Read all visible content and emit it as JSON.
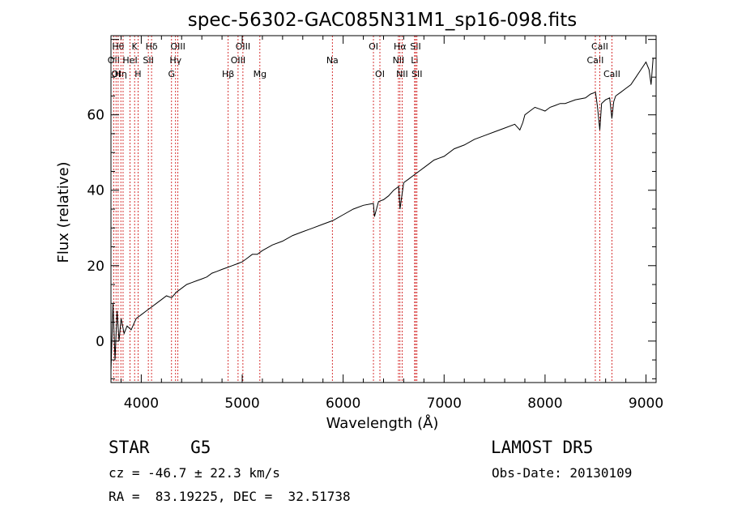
{
  "chart_data": {
    "type": "line",
    "title": "spec-56302-GAC085N31M1_sp16-098.fits",
    "xlabel": "Wavelength (Å)",
    "ylabel": "Flux (relative)",
    "xlim": [
      3700,
      9100
    ],
    "ylim": [
      -11,
      81
    ],
    "xticks": [
      4000,
      5000,
      6000,
      7000,
      8000,
      9000
    ],
    "yticks": [
      0,
      20,
      40,
      60
    ],
    "grid": false,
    "line_color": "#000000",
    "marker_color": "#cc0000",
    "series": [
      {
        "x": [
          3700,
          3720,
          3740,
          3760,
          3780,
          3800,
          3830,
          3860,
          3900,
          3950,
          4000,
          4050,
          4100,
          4150,
          4200,
          4250,
          4300,
          4350,
          4400,
          4450,
          4500,
          4550,
          4600,
          4650,
          4700,
          4750,
          4800,
          4850,
          4900,
          4950,
          5000,
          5050,
          5100,
          5150,
          5200,
          5300,
          5400,
          5500,
          5600,
          5700,
          5800,
          5900,
          6000,
          6100,
          6200,
          6300,
          6310,
          6350,
          6400,
          6450,
          6500,
          6550,
          6563,
          6600,
          6650,
          6700,
          6750,
          6800,
          6850,
          6900,
          6950,
          7000,
          7100,
          7200,
          7300,
          7400,
          7500,
          7600,
          7700,
          7750,
          7780,
          7800,
          7850,
          7900,
          7950,
          8000,
          8050,
          8100,
          8150,
          8200,
          8300,
          8400,
          8450,
          8500,
          8520,
          8542,
          8560,
          8600,
          8640,
          8662,
          8680,
          8700,
          8750,
          8800,
          8850,
          8900,
          8950,
          9000,
          9030,
          9050,
          9070,
          9100
        ],
        "y": [
          -8,
          10,
          -5,
          8,
          0,
          6,
          2,
          4,
          3,
          6,
          7,
          8,
          9,
          10,
          11,
          12,
          11.5,
          13,
          14,
          15,
          15.5,
          16,
          16.5,
          17,
          18,
          18.5,
          19,
          19.5,
          20,
          20.5,
          21,
          22,
          23,
          23,
          24,
          25.5,
          26.5,
          28,
          29,
          30,
          31,
          32,
          33.5,
          35,
          36,
          36.5,
          33,
          37,
          37.5,
          38.5,
          40,
          41,
          35,
          42,
          43,
          44,
          45,
          46,
          47,
          48,
          48.5,
          49,
          51,
          52,
          53.5,
          54.5,
          55.5,
          56.5,
          57.5,
          56,
          58,
          60,
          61,
          62,
          61.5,
          61,
          62,
          62.5,
          63,
          63,
          64,
          64.5,
          65.5,
          66,
          62,
          56,
          63,
          64,
          64.5,
          59,
          63.5,
          65,
          66,
          67,
          68,
          70,
          72,
          74,
          72,
          68,
          75,
          75
        ]
      }
    ],
    "line_markers": [
      {
        "w": 3727,
        "label": "OII",
        "row": 1
      },
      {
        "w": 3750,
        "label": "OI",
        "row": 2
      },
      {
        "w": 3771,
        "label": "Hθ",
        "row": 0
      },
      {
        "w": 3798,
        "label": "Hη",
        "row": 2
      },
      {
        "w": 3820,
        "label": "",
        "row": 0
      },
      {
        "w": 3889,
        "label": "HeI",
        "row": 1
      },
      {
        "w": 3934,
        "label": "K",
        "row": 0
      },
      {
        "w": 3968,
        "label": "H",
        "row": 2
      },
      {
        "w": 4070,
        "label": "SII",
        "row": 1
      },
      {
        "w": 4102,
        "label": "Hδ",
        "row": 0
      },
      {
        "w": 4300,
        "label": "G",
        "row": 2
      },
      {
        "w": 4340,
        "label": "Hγ",
        "row": 1
      },
      {
        "w": 4363,
        "label": "OIII",
        "row": 0
      },
      {
        "w": 4861,
        "label": "Hβ",
        "row": 2
      },
      {
        "w": 4959,
        "label": "OIII",
        "row": 1
      },
      {
        "w": 5007,
        "label": "OIII",
        "row": 0
      },
      {
        "w": 5175,
        "label": "Mg",
        "row": 2
      },
      {
        "w": 5893,
        "label": "Na",
        "row": 1
      },
      {
        "w": 6300,
        "label": "OI",
        "row": 0
      },
      {
        "w": 6364,
        "label": "OI",
        "row": 2
      },
      {
        "w": 6548,
        "label": "NII",
        "row": 1
      },
      {
        "w": 6563,
        "label": "Hα",
        "row": 0
      },
      {
        "w": 6584,
        "label": "NII",
        "row": 2
      },
      {
        "w": 6708,
        "label": "Li",
        "row": 1
      },
      {
        "w": 6717,
        "label": "SII",
        "row": 0
      },
      {
        "w": 6731,
        "label": "SII",
        "row": 2
      },
      {
        "w": 8498,
        "label": "CaII",
        "row": 1
      },
      {
        "w": 8542,
        "label": "CaII",
        "row": 0
      },
      {
        "w": 8662,
        "label": "CaII",
        "row": 2
      }
    ]
  },
  "info": {
    "classification": "STAR    G5",
    "survey": "LAMOST DR5",
    "redshift": "cz = -46.7 ± 22.3 km/s",
    "obs_date": "Obs-Date: 20130109",
    "coords": "RA =  83.19225, DEC =  32.51738"
  }
}
